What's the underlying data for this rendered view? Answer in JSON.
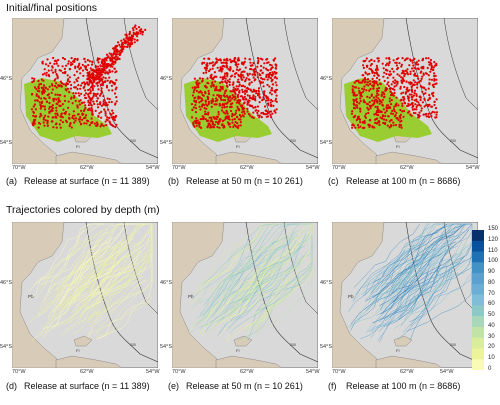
{
  "sections": {
    "top_title": "Initial/final positions",
    "bottom_title": "Trajectories colored by depth (m)"
  },
  "axis_ticks": {
    "lat_north": "46°S",
    "lat_south": "54°S",
    "lon_west": "70°W",
    "lon_mid": "62°W",
    "lon_east": "54°W"
  },
  "panels": [
    {
      "letter": "(a)",
      "caption": "Release at surface (n = 11 389)",
      "mode": "positions",
      "depth": "surface"
    },
    {
      "letter": "(b)",
      "caption": "Release at 50 m (n = 10 261)",
      "mode": "positions",
      "depth": "50"
    },
    {
      "letter": "(c)",
      "caption": "Release at 100 m (n = 8686)",
      "mode": "positions",
      "depth": "100"
    },
    {
      "letter": "(d)",
      "caption": "Release at surface (n = 11 389)",
      "mode": "trajectories",
      "depth": "surface"
    },
    {
      "letter": "(e)",
      "caption": "Release at 50 m (n = 10 261)",
      "mode": "trajectories",
      "depth": "50"
    },
    {
      "letter": "(f)",
      "caption": "Release at 100 m (n = 8686)",
      "mode": "trajectories",
      "depth": "100"
    }
  ],
  "map_text": {
    "place_pb": "Pb",
    "island_fi": "FI",
    "contour_label": "200"
  },
  "colorbar": {
    "ticks": [
      "150",
      "120",
      "110",
      "100",
      "90",
      "80",
      "70",
      "60",
      "50",
      "40",
      "30",
      "20",
      "10",
      "0"
    ],
    "colors": [
      "#08306b",
      "#08519c",
      "#2171b5",
      "#4292c6",
      "#5aa1cf",
      "#6baed6",
      "#7fbdd8",
      "#8dc9c6",
      "#a8d8b9",
      "#c2e3a8",
      "#d9ed9b",
      "#ecf49a",
      "#fbfbb8"
    ]
  },
  "legend_colors": {
    "initial": "#9acd32",
    "final": "#e00000",
    "land": "#d8cbb8",
    "ocean": "#d9d9d9"
  }
}
